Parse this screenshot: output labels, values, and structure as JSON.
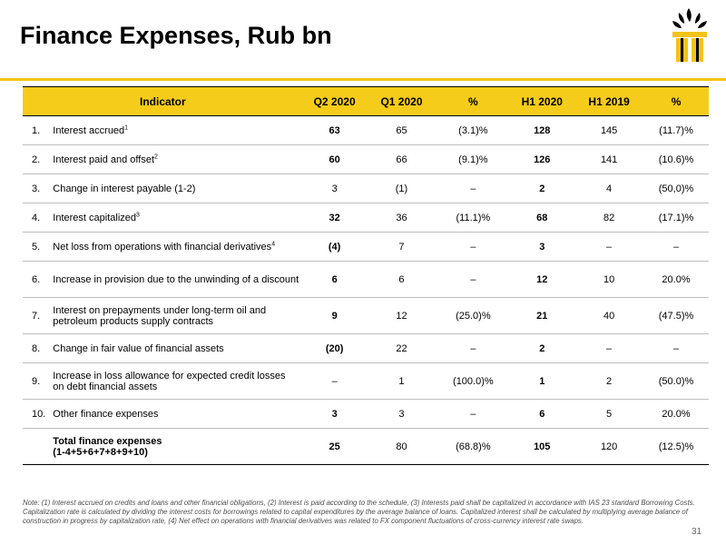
{
  "title": "Finance Expenses, Rub bn",
  "colors": {
    "accent": "#f6cc1b",
    "logo_yellow": "#f2c319",
    "logo_black": "#000000"
  },
  "logo": {
    "icon": "rosneft-logo-icon"
  },
  "table": {
    "headers": [
      "Indicator",
      "Q2 2020",
      "Q1 2020",
      "%",
      "H1 2020",
      "H1 2019",
      "%"
    ],
    "rows": [
      {
        "num": "1.",
        "label": "Interest accrued",
        "sup": "1",
        "q2_2020": "63",
        "q1_2020": "65",
        "pct_q": "(3.1)%",
        "h1_2020": "128",
        "h1_2019": "145",
        "pct_h": "(11.7)%"
      },
      {
        "num": "2.",
        "label": "Interest paid and offset",
        "sup": "2",
        "q2_2020": "60",
        "q1_2020": "66",
        "pct_q": "(9.1)%",
        "h1_2020": "126",
        "h1_2019": "141",
        "pct_h": "(10.6)%"
      },
      {
        "num": "3.",
        "label": "Change in interest payable (1-2)",
        "sup": "",
        "q2_2020": "3",
        "q1_2020": "(1)",
        "pct_q": "–",
        "h1_2020": "2",
        "h1_2019": "4",
        "pct_h": "(50,0)%"
      },
      {
        "num": "4.",
        "label": "Interest capitalized",
        "sup": "3",
        "q2_2020": "32",
        "q1_2020": "36",
        "pct_q": "(11.1)%",
        "h1_2020": "68",
        "h1_2019": "82",
        "pct_h": "(17.1)%"
      },
      {
        "num": "5.",
        "label": "Net loss from operations with financial derivatives",
        "sup": "4",
        "q2_2020": "(4)",
        "q1_2020": "7",
        "pct_q": "–",
        "h1_2020": "3",
        "h1_2019": "–",
        "pct_h": "–"
      },
      {
        "num": "6.",
        "label": "Increase in provision due to the unwinding of a discount",
        "sup": "",
        "q2_2020": "6",
        "q1_2020": "6",
        "pct_q": "–",
        "h1_2020": "12",
        "h1_2019": "10",
        "pct_h": "20.0%"
      },
      {
        "num": "7.",
        "label": "Interest on prepayments under long-term oil and petroleum products supply contracts",
        "sup": "",
        "q2_2020": "9",
        "q1_2020": "12",
        "pct_q": "(25.0)%",
        "h1_2020": "21",
        "h1_2019": "40",
        "pct_h": "(47.5)%"
      },
      {
        "num": "8.",
        "label": "Change in fair value of financial assets",
        "sup": "",
        "q2_2020": "(20)",
        "q1_2020": "22",
        "pct_q": "–",
        "h1_2020": "2",
        "h1_2019": "–",
        "pct_h": "–"
      },
      {
        "num": "9.",
        "label": "Increase in loss allowance for expected credit losses on debt financial assets",
        "sup": "",
        "q2_2020": "–",
        "q1_2020": "1",
        "pct_q": "(100.0)%",
        "h1_2020": "1",
        "h1_2019": "2",
        "pct_h": "(50.0)%"
      },
      {
        "num": "10.",
        "label": "Other finance expenses",
        "sup": "",
        "q2_2020": "3",
        "q1_2020": "3",
        "pct_q": "–",
        "h1_2020": "6",
        "h1_2019": "5",
        "pct_h": "20.0%"
      }
    ],
    "total": {
      "label": "Total finance expenses",
      "formula": "(1-4+5+6+7+8+9+10)",
      "q2_2020": "25",
      "q1_2020": "80",
      "pct_q": "(68.8)%",
      "h1_2020": "105",
      "h1_2019": "120",
      "pct_h": "(12.5)%"
    }
  },
  "note": "Note: (1) Interest accrued on credits and loans and other financial obligations, (2) Interest is paid according to the schedule, (3) Interests paid shall be capitalized in accordance with IAS 23 standard Borrowing Costs. Capitalization rate is calculated by dividing the interest costs for borrowings related to capital expenditures by the average balance of loans. Capitalized interest shall be calculated by multiplying average balance of construction in progress by capitalization rate, (4) Net effect on operations with financial derivatives was related to FX component fluctuations of cross-currency interest rate swaps.",
  "page_number": "31"
}
